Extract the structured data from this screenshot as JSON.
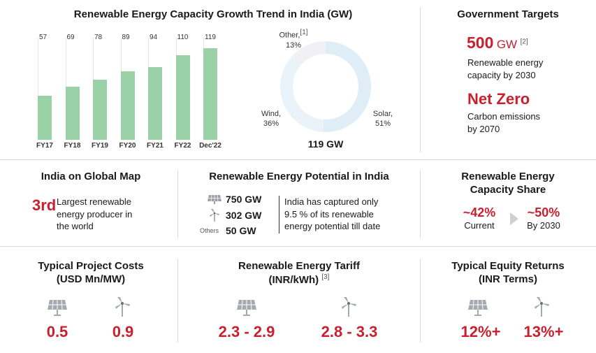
{
  "chart_data": {
    "type": "bar",
    "title": "Renewable Energy Capacity Growth Trend in India (GW)",
    "categories": [
      "FY17",
      "FY18",
      "FY19",
      "FY20",
      "FY21",
      "FY22",
      "Dec'22"
    ],
    "values": [
      57,
      69,
      78,
      89,
      94,
      110,
      119
    ],
    "xlabel": "",
    "ylabel": "",
    "ylim": [
      0,
      125
    ]
  },
  "donut": {
    "total": "119 GW",
    "other_label": "Other,",
    "other_ref": "[1]",
    "other_pct": "13%",
    "wind_label": "Wind,",
    "wind_pct": "36%",
    "solar_label": "Solar,",
    "solar_pct": "51%",
    "slices": [
      {
        "name": "Solar",
        "value": 51,
        "color": "#dfeef6"
      },
      {
        "name": "Wind",
        "value": 36,
        "color": "#e9f3f9"
      },
      {
        "name": "Other",
        "value": 13,
        "color": "#f1f0f7"
      }
    ]
  },
  "gov": {
    "title": "Government Targets",
    "target1_value": "500",
    "target1_unit": "GW",
    "target1_ref": "[2]",
    "target1_desc1": "Renewable energy",
    "target1_desc2": "capacity by 2030",
    "target2_value": "Net Zero",
    "target2_desc1": "Carbon emissions",
    "target2_desc2": "by 2070"
  },
  "global": {
    "title": "India on Global Map",
    "rank": "3rd",
    "desc1": "Largest renewable",
    "desc2": "energy producer in",
    "desc3": "the world"
  },
  "potential": {
    "title": "Renewable Energy Potential in India",
    "solar": "750 GW",
    "wind": "302 GW",
    "others_label": "Others",
    "others": "50 GW",
    "desc1": "India has captured only",
    "desc2": "9.5 %  of its renewable",
    "desc3": "energy potential till date"
  },
  "share": {
    "title1": "Renewable Energy",
    "title2": "Capacity Share",
    "current_value": "~42%",
    "current_label": "Current",
    "future_value": "~50%",
    "future_label": "By 2030"
  },
  "costs": {
    "title1": "Typical Project Costs",
    "title2": "(USD Mn/MW)",
    "solar": "0.5",
    "wind": "0.9"
  },
  "tariff": {
    "title1": "Renewable Energy Tariff",
    "title2": "(INR/kWh)",
    "ref": "[3]",
    "solar": "2.3 - 2.9",
    "wind": "2.8 - 3.3"
  },
  "equity": {
    "title1": "Typical Equity Returns",
    "title2": "(INR Terms)",
    "solar": "12%+",
    "wind": "13%+"
  }
}
